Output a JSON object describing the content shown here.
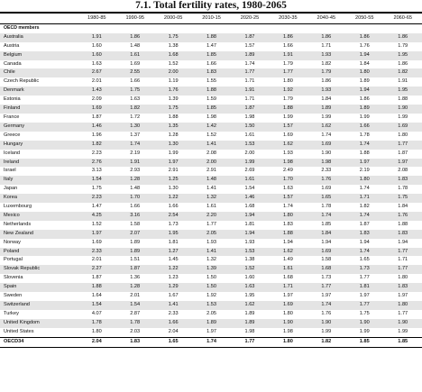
{
  "title": "7.1.  Total fertility rates, 1980-2065",
  "columns": [
    "1980-85",
    "1990-95",
    "2000-05",
    "2010-15",
    "2020-25",
    "2030-35",
    "2040-45",
    "2050-55",
    "2060-65"
  ],
  "section_label": "OECD members",
  "rows": [
    {
      "name": "Australia",
      "values": [
        "1.91",
        "1.86",
        "1.75",
        "1.88",
        "1.87",
        "1.86",
        "1.86",
        "1.86",
        "1.86"
      ]
    },
    {
      "name": "Austria",
      "values": [
        "1.60",
        "1.48",
        "1.38",
        "1.47",
        "1.57",
        "1.66",
        "1.71",
        "1.76",
        "1.79"
      ]
    },
    {
      "name": "Belgium",
      "values": [
        "1.60",
        "1.61",
        "1.68",
        "1.85",
        "1.89",
        "1.91",
        "1.93",
        "1.94",
        "1.95"
      ]
    },
    {
      "name": "Canada",
      "values": [
        "1.63",
        "1.69",
        "1.52",
        "1.66",
        "1.74",
        "1.79",
        "1.82",
        "1.84",
        "1.86"
      ]
    },
    {
      "name": "Chile",
      "values": [
        "2.67",
        "2.55",
        "2.00",
        "1.83",
        "1.77",
        "1.77",
        "1.79",
        "1.80",
        "1.82"
      ]
    },
    {
      "name": "Czech Republic",
      "values": [
        "2.01",
        "1.66",
        "1.19",
        "1.55",
        "1.71",
        "1.80",
        "1.86",
        "1.89",
        "1.91"
      ]
    },
    {
      "name": "Denmark",
      "values": [
        "1.43",
        "1.75",
        "1.76",
        "1.88",
        "1.91",
        "1.92",
        "1.93",
        "1.94",
        "1.95"
      ]
    },
    {
      "name": "Estonia",
      "values": [
        "2.09",
        "1.63",
        "1.39",
        "1.59",
        "1.71",
        "1.79",
        "1.84",
        "1.86",
        "1.88"
      ]
    },
    {
      "name": "Finland",
      "values": [
        "1.69",
        "1.82",
        "1.75",
        "1.85",
        "1.87",
        "1.88",
        "1.89",
        "1.89",
        "1.90"
      ]
    },
    {
      "name": "France",
      "values": [
        "1.87",
        "1.72",
        "1.88",
        "1.98",
        "1.98",
        "1.99",
        "1.99",
        "1.99",
        "1.99"
      ]
    },
    {
      "name": "Germany",
      "values": [
        "1.46",
        "1.30",
        "1.35",
        "1.42",
        "1.50",
        "1.57",
        "1.62",
        "1.66",
        "1.69"
      ]
    },
    {
      "name": "Greece",
      "values": [
        "1.96",
        "1.37",
        "1.28",
        "1.52",
        "1.61",
        "1.69",
        "1.74",
        "1.78",
        "1.80"
      ]
    },
    {
      "name": "Hungary",
      "values": [
        "1.82",
        "1.74",
        "1.30",
        "1.41",
        "1.53",
        "1.62",
        "1.69",
        "1.74",
        "1.77"
      ]
    },
    {
      "name": "Iceland",
      "values": [
        "2.23",
        "2.19",
        "1.99",
        "2.08",
        "2.00",
        "1.93",
        "1.90",
        "1.88",
        "1.87"
      ]
    },
    {
      "name": "Ireland",
      "values": [
        "2.76",
        "1.91",
        "1.97",
        "2.00",
        "1.99",
        "1.98",
        "1.98",
        "1.97",
        "1.97"
      ]
    },
    {
      "name": "Israel",
      "values": [
        "3.13",
        "2.93",
        "2.91",
        "2.91",
        "2.69",
        "2.49",
        "2.33",
        "2.19",
        "2.08"
      ]
    },
    {
      "name": "Italy",
      "values": [
        "1.54",
        "1.28",
        "1.25",
        "1.48",
        "1.61",
        "1.70",
        "1.76",
        "1.80",
        "1.83"
      ]
    },
    {
      "name": "Japan",
      "values": [
        "1.75",
        "1.48",
        "1.30",
        "1.41",
        "1.54",
        "1.63",
        "1.69",
        "1.74",
        "1.78"
      ]
    },
    {
      "name": "Korea",
      "values": [
        "2.23",
        "1.70",
        "1.22",
        "1.32",
        "1.46",
        "1.57",
        "1.65",
        "1.71",
        "1.75"
      ]
    },
    {
      "name": "Luxembourg",
      "values": [
        "1.47",
        "1.66",
        "1.66",
        "1.61",
        "1.68",
        "1.74",
        "1.78",
        "1.82",
        "1.84"
      ]
    },
    {
      "name": "Mexico",
      "values": [
        "4.25",
        "3.16",
        "2.54",
        "2.20",
        "1.94",
        "1.80",
        "1.74",
        "1.74",
        "1.76"
      ]
    },
    {
      "name": "Netherlands",
      "values": [
        "1.52",
        "1.58",
        "1.73",
        "1.77",
        "1.81",
        "1.83",
        "1.85",
        "1.87",
        "1.88"
      ]
    },
    {
      "name": "New Zealand",
      "values": [
        "1.97",
        "2.07",
        "1.95",
        "2.05",
        "1.94",
        "1.88",
        "1.84",
        "1.83",
        "1.83"
      ]
    },
    {
      "name": "Norway",
      "values": [
        "1.69",
        "1.89",
        "1.81",
        "1.93",
        "1.93",
        "1.94",
        "1.94",
        "1.94",
        "1.94"
      ]
    },
    {
      "name": "Poland",
      "values": [
        "2.33",
        "1.89",
        "1.27",
        "1.41",
        "1.53",
        "1.62",
        "1.69",
        "1.74",
        "1.77"
      ]
    },
    {
      "name": "Portugal",
      "values": [
        "2.01",
        "1.51",
        "1.45",
        "1.32",
        "1.38",
        "1.49",
        "1.58",
        "1.65",
        "1.71"
      ]
    },
    {
      "name": "Slovak Republic",
      "values": [
        "2.27",
        "1.87",
        "1.22",
        "1.39",
        "1.52",
        "1.61",
        "1.68",
        "1.73",
        "1.77"
      ]
    },
    {
      "name": "Slovenia",
      "values": [
        "1.87",
        "1.36",
        "1.23",
        "1.50",
        "1.60",
        "1.68",
        "1.73",
        "1.77",
        "1.80"
      ]
    },
    {
      "name": "Spain",
      "values": [
        "1.88",
        "1.28",
        "1.29",
        "1.50",
        "1.63",
        "1.71",
        "1.77",
        "1.81",
        "1.83"
      ]
    },
    {
      "name": "Sweden",
      "values": [
        "1.64",
        "2.01",
        "1.67",
        "1.92",
        "1.95",
        "1.97",
        "1.97",
        "1.97",
        "1.97"
      ]
    },
    {
      "name": "Switzerland",
      "values": [
        "1.54",
        "1.54",
        "1.41",
        "1.53",
        "1.62",
        "1.69",
        "1.74",
        "1.77",
        "1.80"
      ]
    },
    {
      "name": "Turkey",
      "values": [
        "4.07",
        "2.87",
        "2.33",
        "2.05",
        "1.89",
        "1.80",
        "1.76",
        "1.75",
        "1.77"
      ]
    },
    {
      "name": "United Kingdom",
      "values": [
        "1.78",
        "1.78",
        "1.66",
        "1.89",
        "1.89",
        "1.90",
        "1.90",
        "1.90",
        "1.90"
      ]
    },
    {
      "name": "United States",
      "values": [
        "1.80",
        "2.03",
        "2.04",
        "1.97",
        "1.98",
        "1.98",
        "1.99",
        "1.99",
        "1.99"
      ]
    }
  ],
  "total": {
    "name": "OECD34",
    "values": [
      "2.04",
      "1.83",
      "1.65",
      "1.74",
      "1.77",
      "1.80",
      "1.82",
      "1.85",
      "1.85"
    ]
  }
}
